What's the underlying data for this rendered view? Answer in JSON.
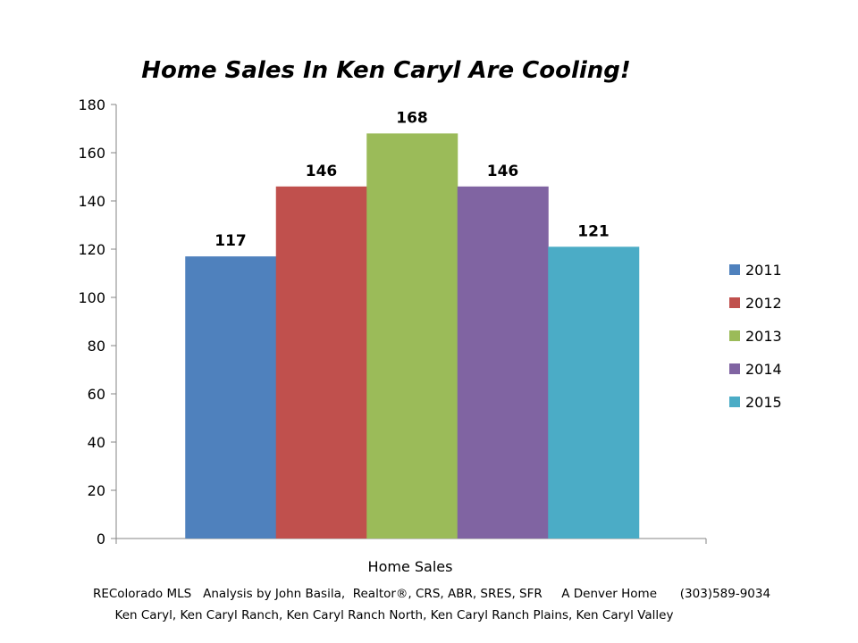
{
  "chart_data": {
    "type": "bar",
    "title": "Home Sales In Ken Caryl Are Cooling!",
    "categories": [
      "Home Sales"
    ],
    "series": [
      {
        "name": "2011",
        "values": [
          117
        ],
        "color": "#4F81BD"
      },
      {
        "name": "2012",
        "values": [
          146
        ],
        "color": "#C0504D"
      },
      {
        "name": "2013",
        "values": [
          168
        ],
        "color": "#9BBB59"
      },
      {
        "name": "2014",
        "values": [
          146
        ],
        "color": "#8064A2"
      },
      {
        "name": "2015",
        "values": [
          121
        ],
        "color": "#4BACC6"
      }
    ],
    "ylim": [
      0,
      180
    ],
    "yticks": [
      0,
      20,
      40,
      60,
      80,
      100,
      120,
      140,
      160,
      180
    ],
    "grid": false,
    "legend": "right",
    "data_labels": true
  },
  "footer": {
    "line1": "REColorado MLS   Analysis by John Basila,  Realtor®, CRS, ABR, SRES, SFR     A Denver Home      (303)589-9034",
    "line2": "Ken Caryl, Ken Caryl Ranch, Ken Caryl Ranch North, Ken Caryl Ranch Plains, Ken Caryl Valley"
  }
}
